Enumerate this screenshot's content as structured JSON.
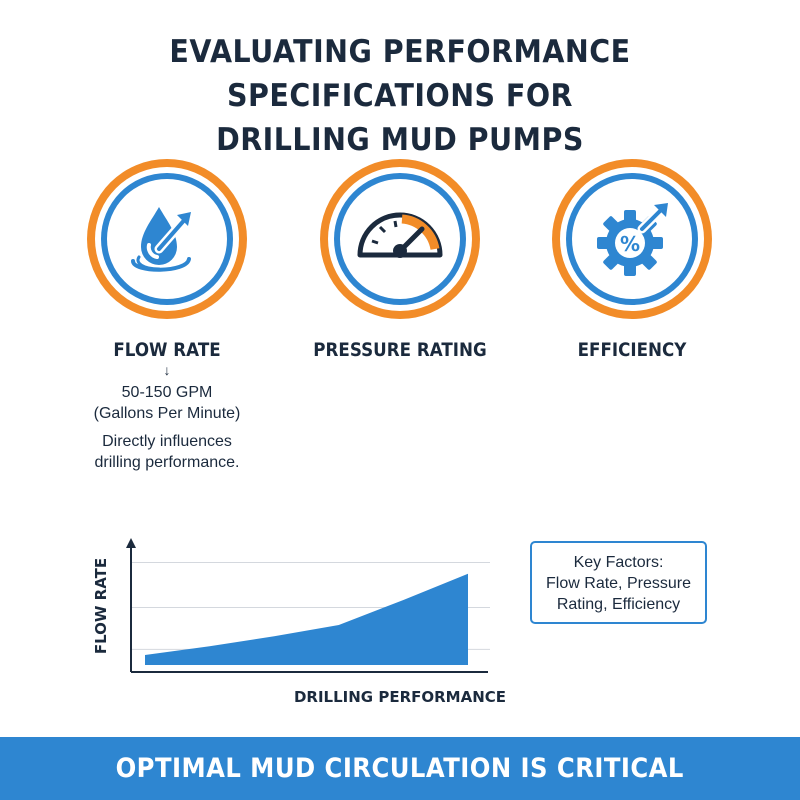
{
  "title": {
    "line1": "EVALUATING PERFORMANCE SPECIFICATIONS FOR",
    "line2": "DRILLING MUD PUMPS"
  },
  "metrics": [
    {
      "icon": "water-drop-arrow-icon",
      "label": "FLOW RATE"
    },
    {
      "icon": "pressure-gauge-icon",
      "label": "PRESSURE RATING"
    },
    {
      "icon": "gear-percent-icon",
      "label": "EFFICIENCY"
    }
  ],
  "flow_detail": {
    "arrow": "↓",
    "range": "50-150 GPM",
    "unit_desc": "(Gallons Per Minute)",
    "note_line1": "Directly influences",
    "note_line2": "drilling performance."
  },
  "chart_data": {
    "type": "area",
    "title": "",
    "xlabel": "DRILLING PERFORMANCE",
    "ylabel": "FLOW RATE",
    "x": [
      0,
      1,
      2,
      3,
      4,
      5
    ],
    "values": [
      0.08,
      0.15,
      0.23,
      0.32,
      0.52,
      0.73
    ],
    "ylim": [
      0,
      1
    ],
    "grid": true,
    "color": "#2e86d1"
  },
  "key_factors": {
    "line1": "Key Factors:",
    "line2": "Flow Rate, Pressure",
    "line3": "Rating, Efficiency"
  },
  "footer": {
    "text": "OPTIMAL MUD CIRCULATION IS CRITICAL"
  },
  "colors": {
    "accent_blue": "#2e86d1",
    "accent_orange": "#f28c28",
    "text_dark": "#1b2a3d"
  }
}
